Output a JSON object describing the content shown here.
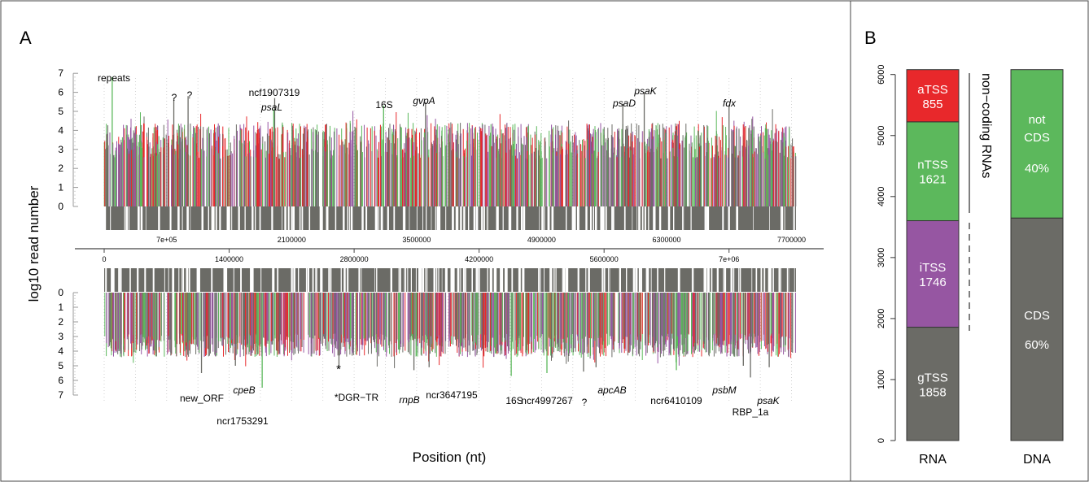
{
  "panels": {
    "a": "A",
    "b": "B"
  },
  "chart_data": [
    {
      "type": "bar",
      "panel": "A",
      "title": "",
      "xlabel": "Position (nt)",
      "ylabel": "log10 read number",
      "xlim": [
        0,
        7750000
      ],
      "top_strand": {
        "ylim": [
          0,
          7
        ],
        "y_ticks": [
          "0",
          "1",
          "2",
          "3",
          "4",
          "5",
          "6",
          "7"
        ],
        "x_ticks": [
          {
            "value": 700000,
            "label": "7e+05"
          },
          {
            "value": 2100000,
            "label": "2100000"
          },
          {
            "value": 3500000,
            "label": "3500000"
          },
          {
            "value": 4900000,
            "label": "4900000"
          },
          {
            "value": 6300000,
            "label": "6300000"
          },
          {
            "value": 7700000,
            "label": "7700000"
          }
        ],
        "highlight_peaks": [
          {
            "x": 90000,
            "y": 6.8,
            "label": "repeats",
            "italic": false
          },
          {
            "x": 780000,
            "y": 5.7,
            "label": "?",
            "italic": false
          },
          {
            "x": 940000,
            "y": 5.8,
            "label": "?",
            "italic": false
          },
          {
            "x": 1910000,
            "y": 5.7,
            "label": "ncf1907319",
            "italic": false
          },
          {
            "x": 1900000,
            "y": 5.1,
            "label": "psaL",
            "italic": true
          },
          {
            "x": 3130000,
            "y": 5.3,
            "label": "16S",
            "italic": false
          },
          {
            "x": 3600000,
            "y": 5.5,
            "label": "gvpA",
            "italic": true
          },
          {
            "x": 5810000,
            "y": 5.4,
            "label": "psaD",
            "italic": true
          },
          {
            "x": 6050000,
            "y": 6.0,
            "label": "psaK",
            "italic": true
          },
          {
            "x": 7000000,
            "y": 5.3,
            "label": "fdx",
            "italic": true
          }
        ]
      },
      "bottom_strand": {
        "ylim": [
          0,
          7
        ],
        "y_ticks": [
          "0",
          "1",
          "2",
          "3",
          "4",
          "5",
          "6",
          "7"
        ],
        "x_ticks": [
          {
            "value": 0,
            "label": "0"
          },
          {
            "value": 1400000,
            "label": "1400000"
          },
          {
            "value": 2800000,
            "label": "2800000"
          },
          {
            "value": 4200000,
            "label": "4200000"
          },
          {
            "value": 5600000,
            "label": "5600000"
          },
          {
            "value": 7000000,
            "label": "7e+06"
          }
        ],
        "highlight_peaks": [
          {
            "x": 1090000,
            "y": 5.5,
            "label": "new_ORF",
            "italic": false
          },
          {
            "x": 1470000,
            "y": 5.0,
            "label": "cpeB",
            "italic": true
          },
          {
            "x": 1770000,
            "y": 6.5,
            "label": "ncr1753291",
            "italic": false
          },
          {
            "x": 2630000,
            "y": 5.1,
            "label": "*DGR−TR",
            "italic": false
          },
          {
            "x": 3470000,
            "y": 5.3,
            "label": "rnpB",
            "italic": true
          },
          {
            "x": 3640000,
            "y": 5.1,
            "label": "ncr3647195",
            "italic": false
          },
          {
            "x": 4560000,
            "y": 5.7,
            "label": "16S",
            "italic": false
          },
          {
            "x": 4960000,
            "y": 5.5,
            "label": "ncr4997267",
            "italic": false
          },
          {
            "x": 5370000,
            "y": 5.4,
            "label": "?",
            "italic": false
          },
          {
            "x": 5510000,
            "y": 5.1,
            "label": "apcAB",
            "italic": true
          },
          {
            "x": 6410000,
            "y": 5.3,
            "label": "ncr6410109",
            "italic": false
          },
          {
            "x": 7160000,
            "y": 5.0,
            "label": "psbM",
            "italic": true
          },
          {
            "x": 7240000,
            "y": 5.8,
            "label": "RBP_1a",
            "italic": false
          },
          {
            "x": 7450000,
            "y": 5.1,
            "label": "psaK",
            "italic": true
          }
        ],
        "annotations": [
          "*"
        ]
      },
      "series": [
        {
          "name": "gTSS",
          "color": "#6b6b66"
        },
        {
          "name": "iTSS",
          "color": "#9656a2"
        },
        {
          "name": "nTSS",
          "color": "#5cb85c"
        },
        {
          "name": "aTSS",
          "color": "#e8282b"
        }
      ],
      "gene_track_color": "#6b6b66",
      "grid": false
    },
    {
      "type": "bar",
      "stacked": true,
      "panel": "B",
      "categories": [
        "RNA",
        "DNA"
      ],
      "ylim": [
        0,
        6100
      ],
      "y_ticks": [
        "0",
        "1000",
        "2000",
        "3000",
        "4000",
        "5000",
        "6000"
      ],
      "rna": [
        {
          "label": "gTSS",
          "value": 1858,
          "value_label": "1858",
          "color": "#6b6b66"
        },
        {
          "label": "iTSS",
          "value": 1746,
          "value_label": "1746",
          "color": "#9656a2"
        },
        {
          "label": "nTSS",
          "value": 1621,
          "value_label": "1621",
          "color": "#5cb85c"
        },
        {
          "label": "aTSS",
          "value": 855,
          "value_label": "855",
          "color": "#e8282b"
        }
      ],
      "dna": [
        {
          "label": "CDS",
          "value_label": "60%",
          "percent": 60,
          "color": "#6b6b66"
        },
        {
          "label_lines": [
            "not",
            "CDS"
          ],
          "value_label": "40%",
          "percent": 40,
          "color": "#5cb85c"
        }
      ],
      "bracket_label": "non−coding RNAs",
      "grid": false
    }
  ]
}
